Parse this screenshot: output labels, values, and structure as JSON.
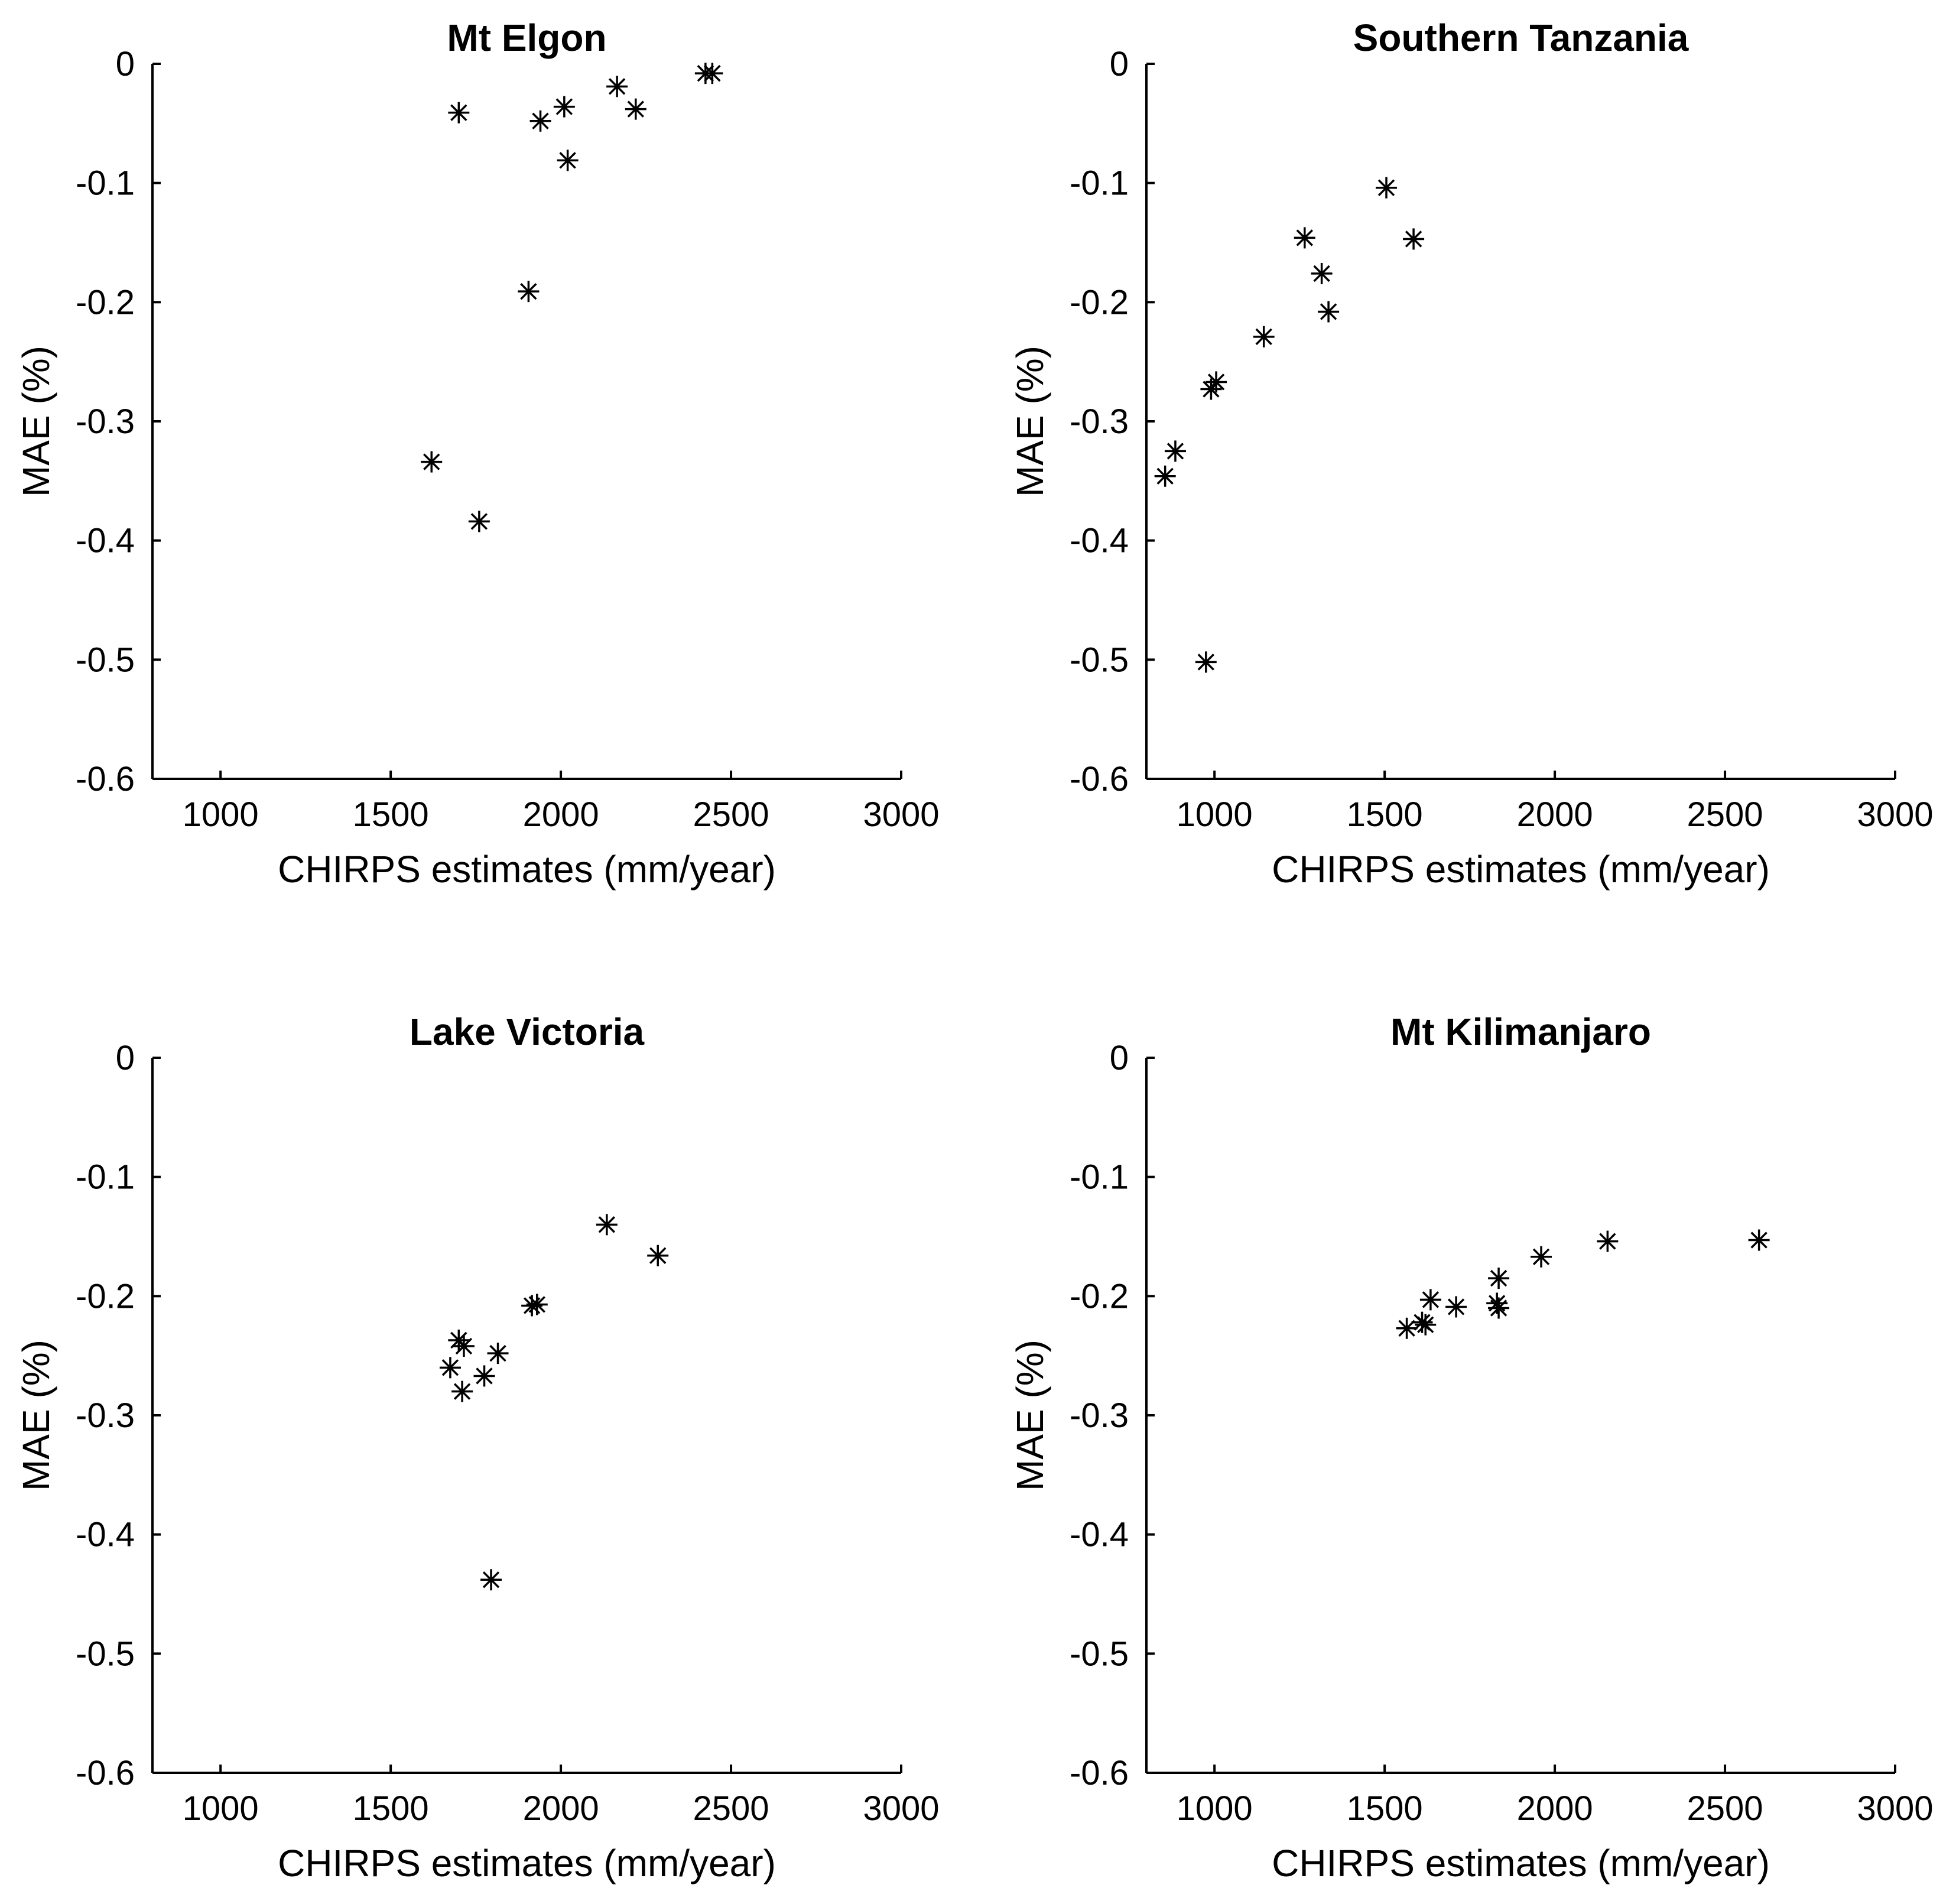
{
  "figure": {
    "background": "#ffffff",
    "marker_color": "#000000",
    "marker": "asterisk"
  },
  "chart_data": [
    {
      "type": "scatter",
      "title": "Mt Elgon",
      "xlabel": "CHIRPS estimates (mm/year)",
      "ylabel": "MAE (%)",
      "xlim": [
        800,
        3000
      ],
      "ylim": [
        -0.6,
        0
      ],
      "xticks": [
        1000,
        1500,
        2000,
        2500,
        3000
      ],
      "xtick_labels": [
        "1000",
        "1500",
        "2000",
        "2500",
        "3000"
      ],
      "yticks": [
        0,
        -0.1,
        -0.2,
        -0.3,
        -0.4,
        -0.5,
        -0.6
      ],
      "ytick_labels": [
        "0",
        "-0.1",
        "-0.2",
        "-0.3",
        "-0.4",
        "-0.5",
        "-0.6"
      ],
      "grid": false,
      "points": [
        {
          "x": 1700,
          "y": -0.041
        },
        {
          "x": 1940,
          "y": -0.048
        },
        {
          "x": 2010,
          "y": -0.036
        },
        {
          "x": 2020,
          "y": -0.081
        },
        {
          "x": 2165,
          "y": -0.019
        },
        {
          "x": 2220,
          "y": -0.038
        },
        {
          "x": 2425,
          "y": -0.008
        },
        {
          "x": 2445,
          "y": -0.008
        },
        {
          "x": 1905,
          "y": -0.191
        },
        {
          "x": 1620,
          "y": -0.334
        },
        {
          "x": 1760,
          "y": -0.384
        }
      ]
    },
    {
      "type": "scatter",
      "title": "Southern Tanzania",
      "xlabel": "CHIRPS estimates (mm/year)",
      "ylabel": "MAE (%)",
      "xlim": [
        800,
        3000
      ],
      "ylim": [
        -0.6,
        0
      ],
      "xticks": [
        1000,
        1500,
        2000,
        2500,
        3000
      ],
      "xtick_labels": [
        "1000",
        "1500",
        "2000",
        "2500",
        "3000"
      ],
      "yticks": [
        0,
        -0.1,
        -0.2,
        -0.3,
        -0.4,
        -0.5,
        -0.6
      ],
      "ytick_labels": [
        "0",
        "-0.1",
        "-0.2",
        "-0.3",
        "-0.4",
        "-0.5",
        "-0.6"
      ],
      "grid": false,
      "points": [
        {
          "x": 1505,
          "y": -0.104
        },
        {
          "x": 1265,
          "y": -0.146
        },
        {
          "x": 1585,
          "y": -0.147
        },
        {
          "x": 1315,
          "y": -0.176
        },
        {
          "x": 1335,
          "y": -0.208
        },
        {
          "x": 1145,
          "y": -0.229
        },
        {
          "x": 1005,
          "y": -0.267
        },
        {
          "x": 990,
          "y": -0.273
        },
        {
          "x": 885,
          "y": -0.325
        },
        {
          "x": 855,
          "y": -0.346
        },
        {
          "x": 975,
          "y": -0.502
        }
      ]
    },
    {
      "type": "scatter",
      "title": "Lake Victoria",
      "xlabel": "CHIRPS estimates (mm/year)",
      "ylabel": "MAE (%)",
      "xlim": [
        800,
        3000
      ],
      "ylim": [
        -0.6,
        0
      ],
      "xticks": [
        1000,
        1500,
        2000,
        2500,
        3000
      ],
      "xtick_labels": [
        "1000",
        "1500",
        "2000",
        "2500",
        "3000"
      ],
      "yticks": [
        0,
        -0.1,
        -0.2,
        -0.3,
        -0.4,
        -0.5,
        -0.6
      ],
      "ytick_labels": [
        "0",
        "-0.1",
        "-0.2",
        "-0.3",
        "-0.4",
        "-0.5",
        "-0.6"
      ],
      "grid": false,
      "points": [
        {
          "x": 2135,
          "y": -0.14
        },
        {
          "x": 2285,
          "y": -0.166
        },
        {
          "x": 1915,
          "y": -0.208
        },
        {
          "x": 1930,
          "y": -0.207
        },
        {
          "x": 1700,
          "y": -0.237
        },
        {
          "x": 1715,
          "y": -0.242
        },
        {
          "x": 1815,
          "y": -0.248
        },
        {
          "x": 1675,
          "y": -0.26
        },
        {
          "x": 1775,
          "y": -0.267
        },
        {
          "x": 1710,
          "y": -0.28
        },
        {
          "x": 1795,
          "y": -0.438
        }
      ]
    },
    {
      "type": "scatter",
      "title": "Mt Kilimanjaro",
      "xlabel": "CHIRPS estimates (mm/year)",
      "ylabel": "MAE (%)",
      "xlim": [
        800,
        3000
      ],
      "ylim": [
        -0.6,
        0
      ],
      "xticks": [
        1000,
        1500,
        2000,
        2500,
        3000
      ],
      "xtick_labels": [
        "1000",
        "1500",
        "2000",
        "2500",
        "3000"
      ],
      "yticks": [
        0,
        -0.1,
        -0.2,
        -0.3,
        -0.4,
        -0.5,
        -0.6
      ],
      "ytick_labels": [
        "0",
        "-0.1",
        "-0.2",
        "-0.3",
        "-0.4",
        "-0.5",
        "-0.6"
      ],
      "grid": false,
      "points": [
        {
          "x": 2600,
          "y": -0.153
        },
        {
          "x": 2155,
          "y": -0.154
        },
        {
          "x": 1960,
          "y": -0.167
        },
        {
          "x": 1835,
          "y": -0.185
        },
        {
          "x": 1635,
          "y": -0.203
        },
        {
          "x": 1830,
          "y": -0.206
        },
        {
          "x": 1835,
          "y": -0.21
        },
        {
          "x": 1710,
          "y": -0.209
        },
        {
          "x": 1610,
          "y": -0.222
        },
        {
          "x": 1620,
          "y": -0.224
        },
        {
          "x": 1565,
          "y": -0.227
        }
      ]
    }
  ]
}
